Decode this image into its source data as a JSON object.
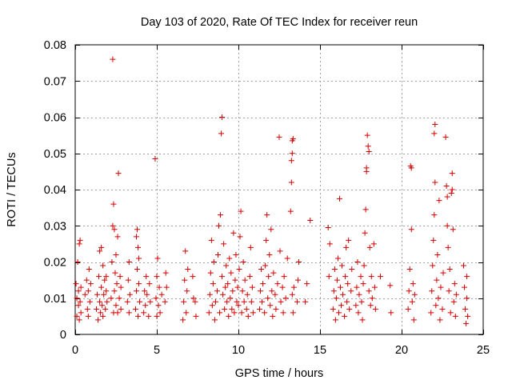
{
  "chart_data": {
    "type": "scatter",
    "title": "Day 103 of 2020, Rate Of TEC Index for receiver reun",
    "xlabel": "GPS time / hours",
    "ylabel": "ROTI / TECUs",
    "xlim": [
      0,
      25
    ],
    "ylim": [
      0,
      0.08
    ],
    "x_ticks": [
      0,
      5,
      10,
      15,
      20,
      25
    ],
    "x_tick_labels": [
      "0",
      "5",
      "10",
      "15",
      "20",
      "25"
    ],
    "y_ticks": [
      0,
      0.01,
      0.02,
      0.03,
      0.04,
      0.05,
      0.06,
      0.07,
      0.08
    ],
    "y_tick_labels": [
      "0",
      "0.01",
      "0.02",
      "0.03",
      "0.04",
      "0.05",
      "0.06",
      "0.07",
      "0.08"
    ],
    "grid": true,
    "marker": "+",
    "color": "#d40000",
    "series": [
      {
        "points": [
          [
            0.05,
            0.014
          ],
          [
            0.1,
            0.01
          ],
          [
            0.1,
            0.005
          ],
          [
            0.15,
            0.02
          ],
          [
            0.2,
            0.008
          ],
          [
            0.2,
            0.012
          ],
          [
            0.25,
            0.025
          ],
          [
            0.25,
            0.004
          ],
          [
            0.3,
            0.026
          ],
          [
            0.3,
            0.009
          ],
          [
            0.35,
            0.006
          ],
          [
            0.35,
            0.013
          ],
          [
            0.6,
            0.011
          ],
          [
            0.7,
            0.015
          ],
          [
            0.75,
            0.007
          ],
          [
            0.8,
            0.012
          ],
          [
            0.8,
            0.005
          ],
          [
            0.85,
            0.018
          ],
          [
            0.9,
            0.009
          ],
          [
            0.95,
            0.014
          ],
          [
            1.3,
            0.007
          ],
          [
            1.35,
            0.011
          ],
          [
            1.4,
            0.004
          ],
          [
            1.45,
            0.016
          ],
          [
            1.5,
            0.009
          ],
          [
            1.5,
            0.023
          ],
          [
            1.55,
            0.006
          ],
          [
            1.6,
            0.013
          ],
          [
            1.6,
            0.024
          ],
          [
            1.65,
            0.008
          ],
          [
            1.7,
            0.019
          ],
          [
            1.7,
            0.005
          ],
          [
            1.75,
            0.011
          ],
          [
            1.8,
            0.015
          ],
          [
            1.85,
            0.007
          ],
          [
            1.9,
            0.012
          ],
          [
            1.9,
            0.016
          ],
          [
            1.95,
            0.009
          ],
          [
            2.2,
            0.01
          ],
          [
            2.25,
            0.02
          ],
          [
            2.3,
            0.03
          ],
          [
            2.3,
            0.076
          ],
          [
            2.35,
            0.036
          ],
          [
            2.35,
            0.006
          ],
          [
            2.4,
            0.029
          ],
          [
            2.4,
            0.012
          ],
          [
            2.45,
            0.017
          ],
          [
            2.5,
            0.008
          ],
          [
            2.5,
            0.022
          ],
          [
            2.55,
            0.014
          ],
          [
            2.6,
            0.027
          ],
          [
            2.6,
            0.006
          ],
          [
            2.65,
            0.0445
          ],
          [
            2.7,
            0.01
          ],
          [
            2.75,
            0.016
          ],
          [
            2.8,
            0.007
          ],
          [
            2.8,
            0.013
          ],
          [
            3.2,
            0.009
          ],
          [
            3.25,
            0.015
          ],
          [
            3.3,
            0.006
          ],
          [
            3.3,
            0.02
          ],
          [
            3.35,
            0.011
          ],
          [
            3.7,
            0.007
          ],
          [
            3.75,
            0.012
          ],
          [
            3.75,
            0.027
          ],
          [
            3.8,
            0.018
          ],
          [
            3.8,
            0.029
          ],
          [
            3.85,
            0.005
          ],
          [
            3.85,
            0.024
          ],
          [
            3.9,
            0.014
          ],
          [
            3.9,
            0.021
          ],
          [
            3.95,
            0.009
          ],
          [
            4.2,
            0.006
          ],
          [
            4.25,
            0.012
          ],
          [
            4.3,
            0.008
          ],
          [
            4.35,
            0.016
          ],
          [
            4.4,
            0.011
          ],
          [
            4.5,
            0.005
          ],
          [
            4.55,
            0.014
          ],
          [
            4.6,
            0.009
          ],
          [
            4.9,
            0.0485
          ],
          [
            4.95,
            0.01
          ],
          [
            5.0,
            0.016
          ],
          [
            5.0,
            0.005
          ],
          [
            5.05,
            0.021
          ],
          [
            5.1,
            0.008
          ],
          [
            5.15,
            0.013
          ],
          [
            5.2,
            0.006
          ],
          [
            5.3,
            0.011
          ],
          [
            5.5,
            0.009
          ],
          [
            5.55,
            0.017
          ],
          [
            5.6,
            0.013
          ],
          [
            6.6,
            0.004
          ],
          [
            6.65,
            0.009
          ],
          [
            6.7,
            0.015
          ],
          [
            6.75,
            0.023
          ],
          [
            6.8,
            0.006
          ],
          [
            6.85,
            0.012
          ],
          [
            6.9,
            0.018
          ],
          [
            7.2,
            0.016
          ],
          [
            7.25,
            0.01
          ],
          [
            7.35,
            0.009
          ],
          [
            7.4,
            0.005
          ],
          [
            8.2,
            0.006
          ],
          [
            8.25,
            0.011
          ],
          [
            8.3,
            0.017
          ],
          [
            8.35,
            0.026
          ],
          [
            8.4,
            0.008
          ],
          [
            8.45,
            0.014
          ],
          [
            8.5,
            0.02
          ],
          [
            8.55,
            0.004
          ],
          [
            8.6,
            0.009
          ],
          [
            8.7,
            0.012
          ],
          [
            8.75,
            0.022
          ],
          [
            8.8,
            0.03
          ],
          [
            8.85,
            0.006
          ],
          [
            8.9,
            0.033
          ],
          [
            8.95,
            0.0555
          ],
          [
            9.0,
            0.06
          ],
          [
            9.0,
            0.016
          ],
          [
            9.05,
            0.011
          ],
          [
            9.1,
            0.025
          ],
          [
            9.15,
            0.007
          ],
          [
            9.2,
            0.013
          ],
          [
            9.25,
            0.019
          ],
          [
            9.3,
            0.009
          ],
          [
            9.35,
            0.014
          ],
          [
            9.4,
            0.005
          ],
          [
            9.45,
            0.021
          ],
          [
            9.5,
            0.01
          ],
          [
            9.55,
            0.017
          ],
          [
            9.6,
            0.007
          ],
          [
            9.65,
            0.012
          ],
          [
            9.7,
            0.028
          ],
          [
            9.75,
            0.006
          ],
          [
            9.8,
            0.015
          ],
          [
            9.85,
            0.022
          ],
          [
            9.9,
            0.009
          ],
          [
            9.95,
            0.013
          ],
          [
            10.0,
            0.008
          ],
          [
            10.05,
            0.018
          ],
          [
            10.1,
            0.027
          ],
          [
            10.15,
            0.034
          ],
          [
            10.2,
            0.006
          ],
          [
            10.25,
            0.012
          ],
          [
            10.3,
            0.02
          ],
          [
            10.35,
            0.009
          ],
          [
            10.4,
            0.015
          ],
          [
            10.5,
            0.007
          ],
          [
            10.55,
            0.011
          ],
          [
            10.6,
            0.005
          ],
          [
            10.7,
            0.016
          ],
          [
            10.75,
            0.024
          ],
          [
            10.8,
            0.009
          ],
          [
            10.85,
            0.013
          ],
          [
            10.9,
            0.006
          ],
          [
            11.3,
            0.007
          ],
          [
            11.35,
            0.012
          ],
          [
            11.4,
            0.018
          ],
          [
            11.45,
            0.009
          ],
          [
            11.5,
            0.014
          ],
          [
            11.6,
            0.006
          ],
          [
            11.65,
            0.019
          ],
          [
            11.7,
            0.026
          ],
          [
            11.75,
            0.033
          ],
          [
            11.8,
            0.01
          ],
          [
            11.85,
            0.016
          ],
          [
            11.9,
            0.022
          ],
          [
            11.95,
            0.008
          ],
          [
            12.0,
            0.029
          ],
          [
            12.05,
            0.012
          ],
          [
            12.1,
            0.005
          ],
          [
            12.15,
            0.017
          ],
          [
            12.25,
            0.011
          ],
          [
            12.3,
            0.007
          ],
          [
            12.4,
            0.014
          ],
          [
            12.5,
            0.0545
          ],
          [
            12.55,
            0.023
          ],
          [
            12.6,
            0.009
          ],
          [
            12.7,
            0.013
          ],
          [
            12.75,
            0.006
          ],
          [
            12.8,
            0.016
          ],
          [
            12.9,
            0.01
          ],
          [
            13.0,
            0.021
          ],
          [
            13.2,
            0.034
          ],
          [
            13.25,
            0.042
          ],
          [
            13.25,
            0.048
          ],
          [
            13.3,
            0.05
          ],
          [
            13.3,
            0.0535
          ],
          [
            13.35,
            0.054
          ],
          [
            13.3,
            0.011
          ],
          [
            13.35,
            0.006
          ],
          [
            13.4,
            0.013
          ],
          [
            13.6,
            0.009
          ],
          [
            13.65,
            0.015
          ],
          [
            13.7,
            0.02
          ],
          [
            14.1,
            0.009
          ],
          [
            14.2,
            0.014
          ],
          [
            14.4,
            0.0315
          ],
          [
            15.5,
            0.0295
          ],
          [
            15.55,
            0.016
          ],
          [
            15.6,
            0.025
          ],
          [
            15.8,
            0.007
          ],
          [
            15.85,
            0.012
          ],
          [
            15.9,
            0.018
          ],
          [
            15.95,
            0.004
          ],
          [
            16.0,
            0.01
          ],
          [
            16.05,
            0.015
          ],
          [
            16.1,
            0.021
          ],
          [
            16.15,
            0.006
          ],
          [
            16.2,
            0.0375
          ],
          [
            16.25,
            0.013
          ],
          [
            16.3,
            0.008
          ],
          [
            16.35,
            0.019
          ],
          [
            16.4,
            0.011
          ],
          [
            16.5,
            0.005
          ],
          [
            16.55,
            0.016
          ],
          [
            16.6,
            0.024
          ],
          [
            16.65,
            0.009
          ],
          [
            16.7,
            0.014
          ],
          [
            16.75,
            0.026
          ],
          [
            16.8,
            0.007
          ],
          [
            16.9,
            0.012
          ],
          [
            16.95,
            0.018
          ],
          [
            17.2,
            0.008
          ],
          [
            17.25,
            0.013
          ],
          [
            17.3,
            0.02
          ],
          [
            17.35,
            0.006
          ],
          [
            17.4,
            0.011
          ],
          [
            17.5,
            0.016
          ],
          [
            17.55,
            0.009
          ],
          [
            17.6,
            0.004
          ],
          [
            17.65,
            0.014
          ],
          [
            17.7,
            0.019
          ],
          [
            17.75,
            0.028
          ],
          [
            17.8,
            0.0345
          ],
          [
            17.85,
            0.045
          ],
          [
            17.85,
            0.046
          ],
          [
            17.9,
            0.055
          ],
          [
            17.95,
            0.052
          ],
          [
            18.0,
            0.0505
          ],
          [
            18.0,
            0.012
          ],
          [
            18.05,
            0.024
          ],
          [
            18.1,
            0.008
          ],
          [
            18.15,
            0.016
          ],
          [
            18.2,
            0.01
          ],
          [
            18.3,
            0.025
          ],
          [
            18.35,
            0.013
          ],
          [
            18.4,
            0.007
          ],
          [
            18.7,
            0.016
          ],
          [
            19.3,
            0.0135
          ],
          [
            19.35,
            0.006
          ],
          [
            20.4,
            0.007
          ],
          [
            20.45,
            0.012
          ],
          [
            20.5,
            0.018
          ],
          [
            20.55,
            0.0465
          ],
          [
            20.6,
            0.046
          ],
          [
            20.6,
            0.029
          ],
          [
            20.65,
            0.009
          ],
          [
            20.7,
            0.014
          ],
          [
            20.75,
            0.004
          ],
          [
            20.8,
            0.011
          ],
          [
            21.8,
            0.006
          ],
          [
            21.85,
            0.012
          ],
          [
            21.9,
            0.019
          ],
          [
            21.95,
            0.026
          ],
          [
            22.0,
            0.033
          ],
          [
            22.0,
            0.0555
          ],
          [
            22.05,
            0.058
          ],
          [
            22.05,
            0.042
          ],
          [
            22.1,
            0.008
          ],
          [
            22.15,
            0.015
          ],
          [
            22.2,
            0.022
          ],
          [
            22.25,
            0.01
          ],
          [
            22.3,
            0.037
          ],
          [
            22.35,
            0.004
          ],
          [
            22.4,
            0.013
          ],
          [
            22.5,
            0.007
          ],
          [
            22.55,
            0.017
          ],
          [
            22.7,
            0.0545
          ],
          [
            22.75,
            0.041
          ],
          [
            22.8,
            0.03
          ],
          [
            22.8,
            0.038
          ],
          [
            22.85,
            0.024
          ],
          [
            22.9,
            0.012
          ],
          [
            22.95,
            0.018
          ],
          [
            23.0,
            0.006
          ],
          [
            23.05,
            0.039
          ],
          [
            23.1,
            0.04
          ],
          [
            23.1,
            0.0445
          ],
          [
            23.15,
            0.029
          ],
          [
            23.2,
            0.009
          ],
          [
            23.25,
            0.014
          ],
          [
            23.3,
            0.005
          ],
          [
            23.35,
            0.011
          ],
          [
            23.8,
            0.019
          ],
          [
            23.85,
            0.013
          ],
          [
            23.9,
            0.007
          ],
          [
            23.95,
            0.003
          ],
          [
            24.0,
            0.016
          ],
          [
            24.0,
            0.01
          ],
          [
            24.05,
            0.005
          ]
        ]
      }
    ]
  }
}
